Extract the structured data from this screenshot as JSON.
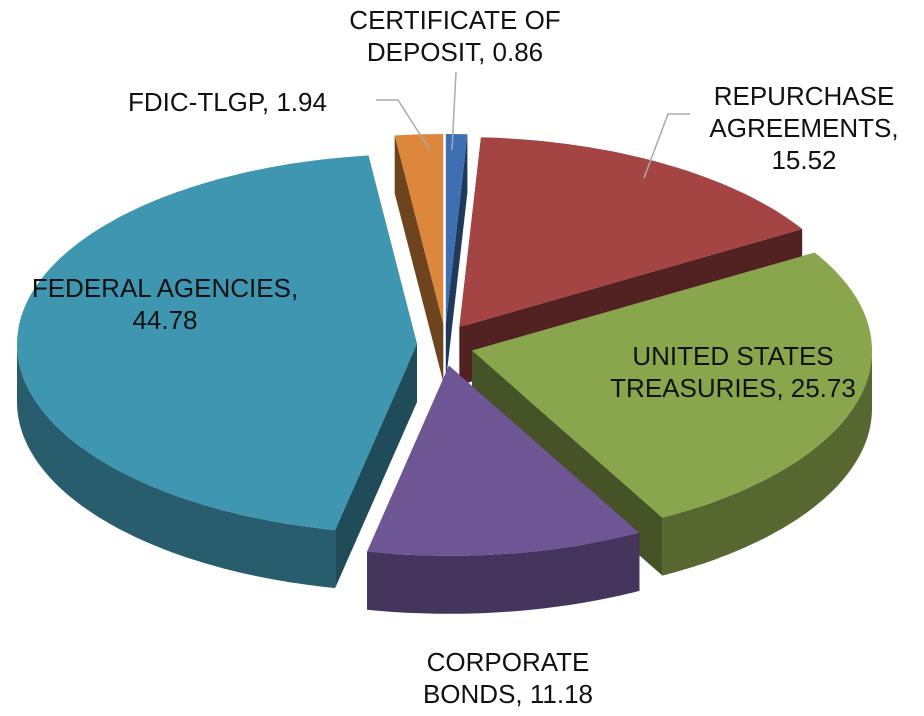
{
  "chart_data": {
    "type": "pie3d",
    "labels": [
      "CERTIFICATE OF DEPOSIT, 0.86",
      "REPURCHASE AGREEMENTS, 15.52",
      "UNITED STATES TREASURIES, 25.73",
      "CORPORATE BONDS, 11.18",
      "FEDERAL AGENCIES, 44.78",
      "FDIC-TLGP, 1.94"
    ],
    "values": [
      0.86,
      15.52,
      25.73,
      11.18,
      44.78,
      1.94
    ],
    "colors": [
      "#3f6fb3",
      "#a44443",
      "#8aa64c",
      "#6e5594",
      "#3f96b0",
      "#dc873b"
    ]
  }
}
